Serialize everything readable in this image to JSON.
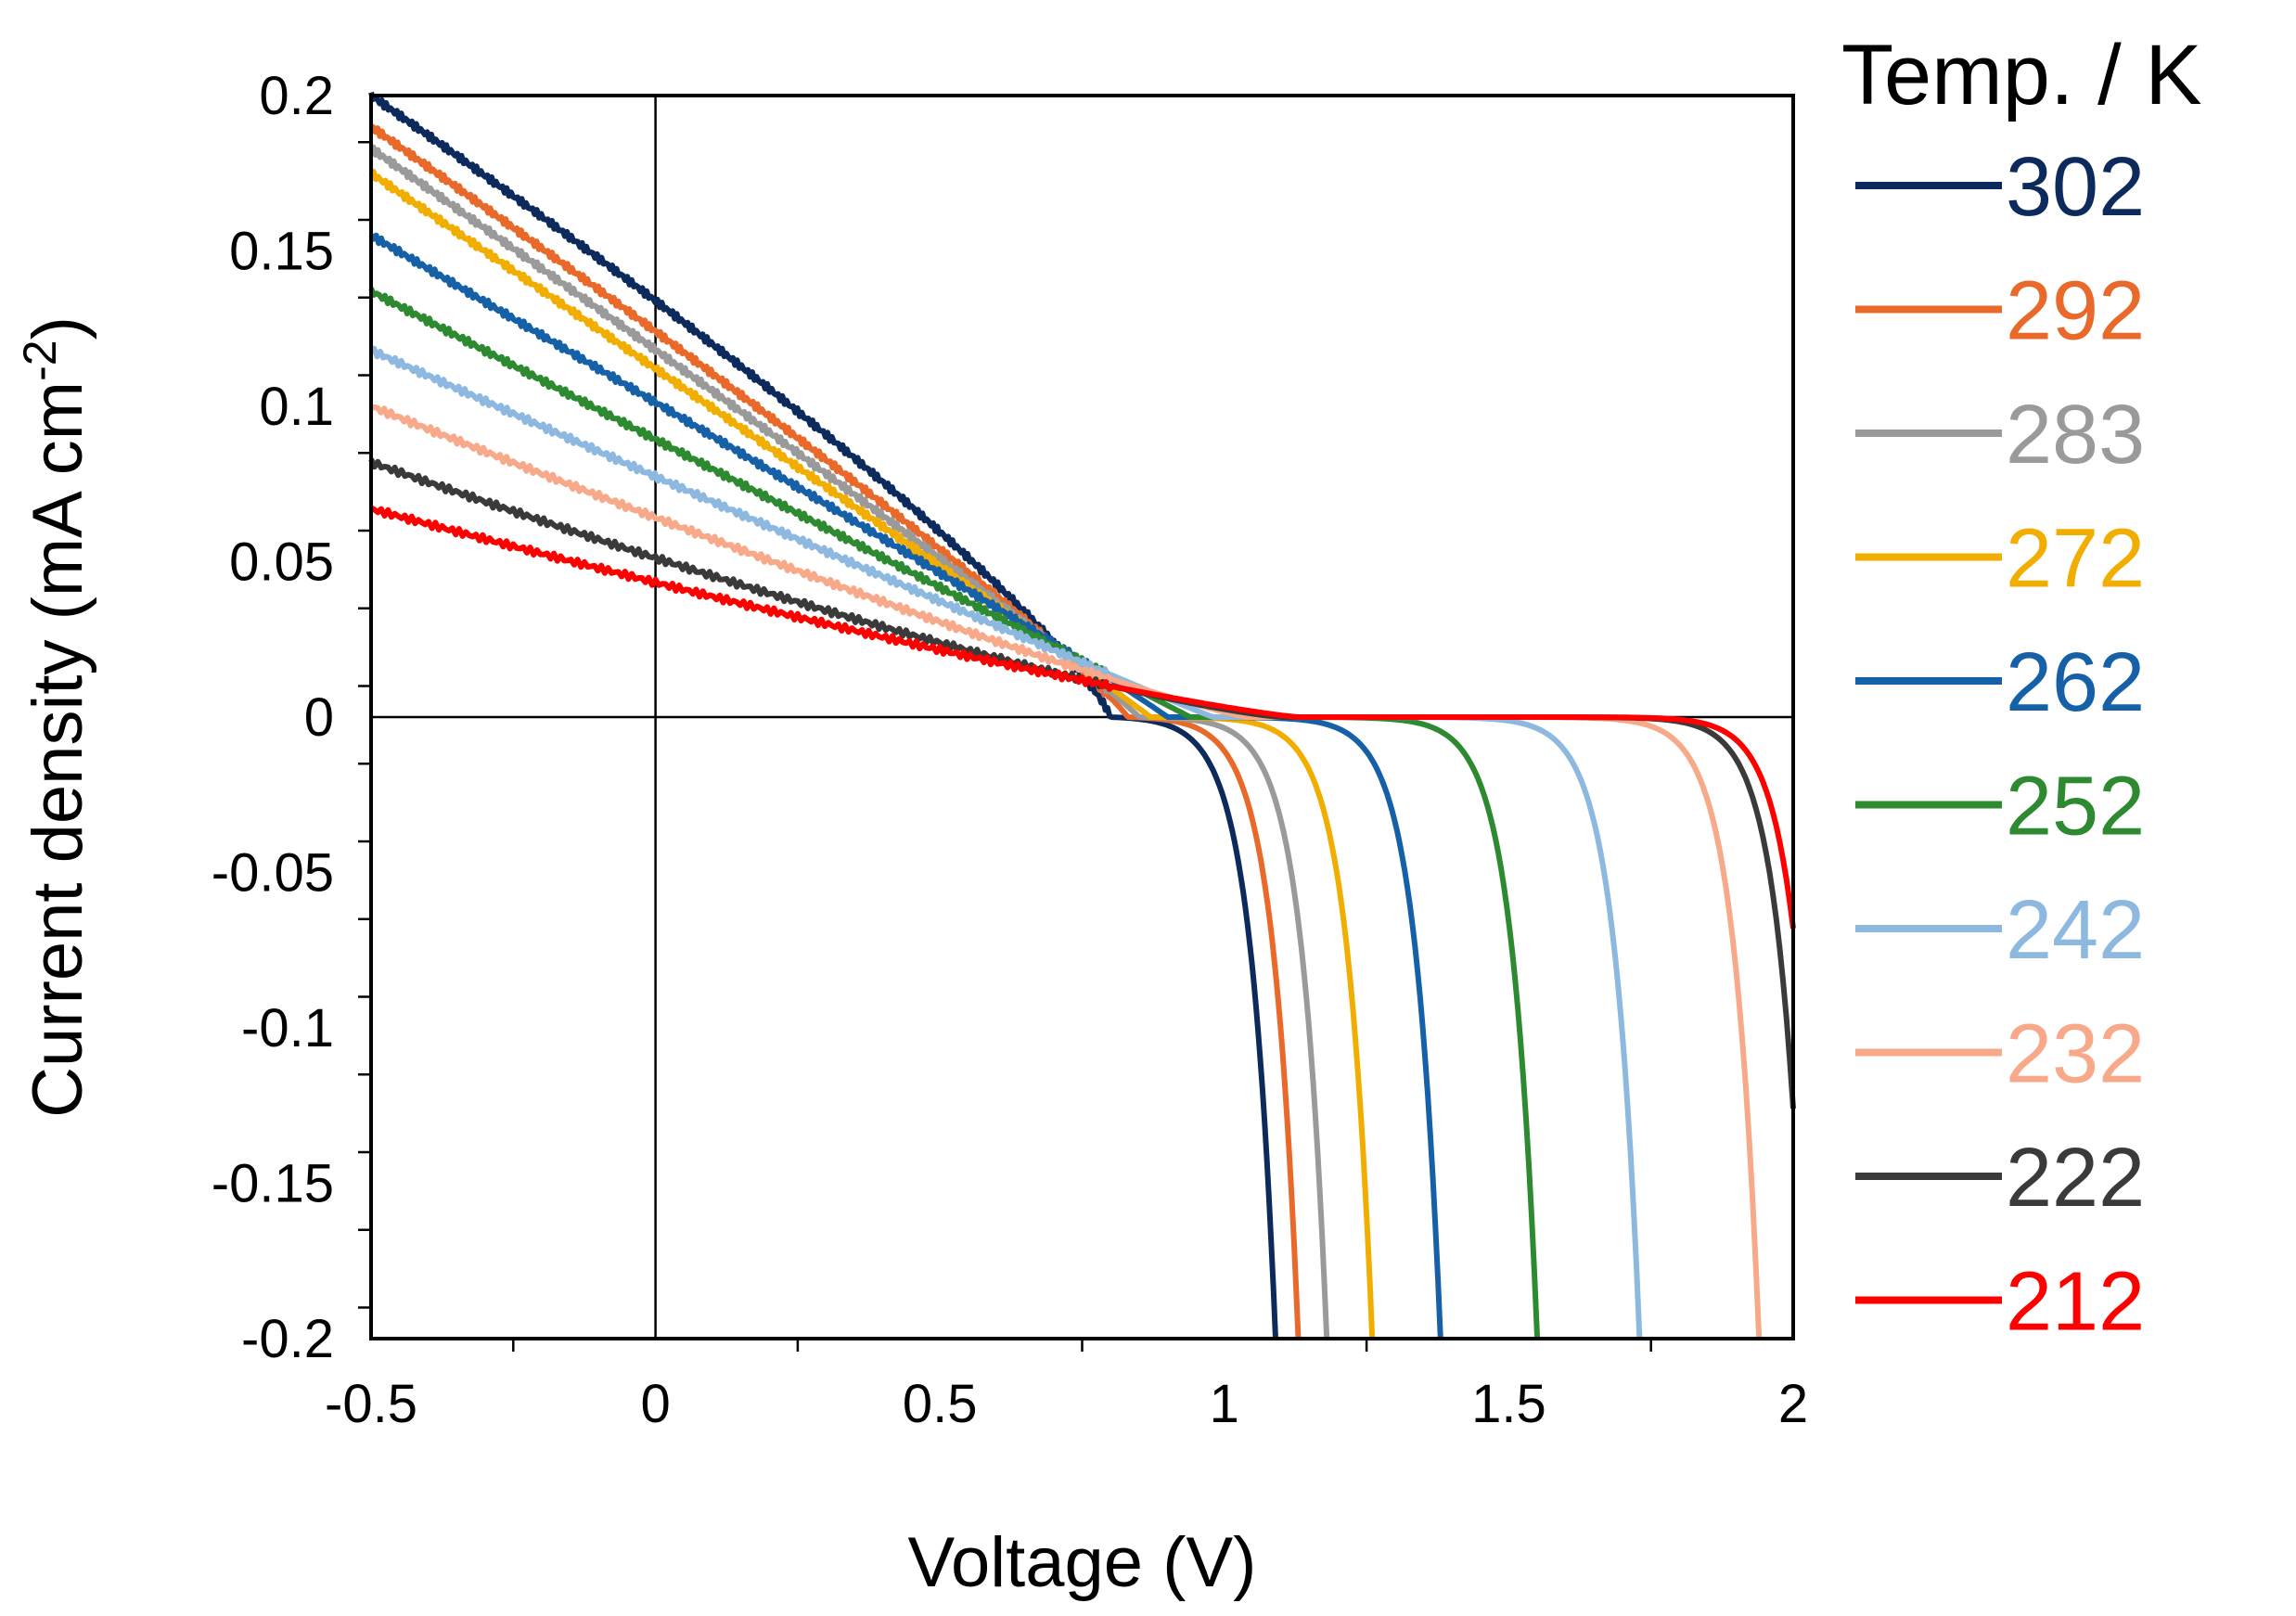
{
  "chart_data": {
    "type": "line",
    "title": "",
    "xlabel": "Voltage (V)",
    "ylabel_main": "Current density (mA cm",
    "ylabel_sup": "-2",
    "ylabel_close": ")",
    "xlim": [
      -0.5,
      2
    ],
    "ylim": [
      -0.2,
      0.2
    ],
    "x_ticks": [
      -0.5,
      0,
      0.5,
      1,
      1.5,
      2
    ],
    "x_tick_labels": [
      "-0.5",
      "0",
      "0.5",
      "1",
      "1.5",
      "2"
    ],
    "y_ticks": [
      0.2,
      0.15,
      0.1,
      0.05,
      0,
      -0.05,
      -0.1,
      -0.15,
      -0.2
    ],
    "y_tick_labels": [
      "0.2",
      "0.15",
      "0.1",
      "0.05",
      "0",
      "-0.05",
      "-0.1",
      "-0.15",
      "-0.2"
    ],
    "grid": false,
    "legend_title": "Temp. / K",
    "legend_position": "right",
    "series": [
      {
        "name": "302",
        "color": "#0d2a5c",
        "y_start": 0.2,
        "x_cross": 0.8,
        "ref": [
          0.72,
          0.02
        ],
        "x_end": 1.09
      },
      {
        "name": "292",
        "color": "#e8692a",
        "y_start": 0.19,
        "x_cross": 0.83,
        "ref": [
          0.72,
          0.02
        ],
        "x_end": 1.13
      },
      {
        "name": "283",
        "color": "#9a9a9a",
        "y_start": 0.183,
        "x_cross": 0.85,
        "ref": [
          0.72,
          0.02
        ],
        "x_end": 1.18
      },
      {
        "name": "272",
        "color": "#f2ae00",
        "y_start": 0.175,
        "x_cross": 0.87,
        "ref": [
          0.72,
          0.02
        ],
        "x_end": 1.26
      },
      {
        "name": "262",
        "color": "#1660a8",
        "y_start": 0.155,
        "x_cross": 0.9,
        "ref": [
          0.75,
          0.018
        ],
        "x_end": 1.38
      },
      {
        "name": "252",
        "color": "#2e8a30",
        "y_start": 0.137,
        "x_cross": 0.94,
        "ref": [
          0.75,
          0.018
        ],
        "x_end": 1.55
      },
      {
        "name": "242",
        "color": "#8db8e0",
        "y_start": 0.118,
        "x_cross": 0.98,
        "ref": [
          0.77,
          0.016
        ],
        "x_end": 1.73
      },
      {
        "name": "232",
        "color": "#f7a98a",
        "y_start": 0.1,
        "x_cross": 1.04,
        "ref": [
          0.77,
          0.014
        ],
        "x_end": 1.94
      },
      {
        "name": "222",
        "color": "#3a3a3a",
        "y_start": 0.082,
        "x_cross": 1.1,
        "ref": [
          0.8,
          0.01
        ],
        "x_end": 2.0,
        "y_end": -0.126
      },
      {
        "name": "212",
        "color": "#ff0000",
        "y_start": 0.067,
        "x_cross": 1.13,
        "ref": [
          0.8,
          0.01
        ],
        "x_end": 2.0,
        "y_end": -0.068
      }
    ]
  }
}
